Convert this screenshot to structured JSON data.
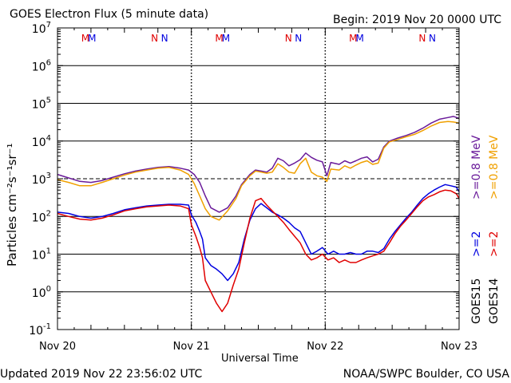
{
  "header": {
    "title": "GOES Electron Flux (5 minute data)",
    "begin": "Begin: 2019 Nov 20 0000 UTC"
  },
  "footer": {
    "updated": "Updated 2019 Nov 22 23:56:02 UTC",
    "credit": "NOAA/SWPC Boulder, CO USA"
  },
  "chart_data": {
    "type": "line",
    "title": "GOES Electron Flux (5 minute data)",
    "xlabel": "Universal Time",
    "ylabel": "Particles cm⁻²s⁻¹sr⁻¹",
    "yscale": "log",
    "ylim": [
      0.1,
      10000000
    ],
    "y_ticks": [
      {
        "value": 0.1,
        "base": "10",
        "exp": "-1"
      },
      {
        "value": 1,
        "base": "10",
        "exp": "0"
      },
      {
        "value": 10,
        "base": "10",
        "exp": "1"
      },
      {
        "value": 100,
        "base": "10",
        "exp": "2"
      },
      {
        "value": 1000,
        "base": "10",
        "exp": "3"
      },
      {
        "value": 10000,
        "base": "10",
        "exp": "4"
      },
      {
        "value": 100000,
        "base": "10",
        "exp": "5"
      },
      {
        "value": 1000000,
        "base": "10",
        "exp": "6"
      },
      {
        "value": 10000000,
        "base": "10",
        "exp": "7"
      }
    ],
    "x_unit": "hours since 2019 Nov 20 0000 UTC",
    "xlim": [
      0,
      72
    ],
    "x_ticks": [
      {
        "value": 0,
        "label": "Nov 20"
      },
      {
        "value": 24,
        "label": "Nov 21"
      },
      {
        "value": 48,
        "label": "Nov 22"
      },
      {
        "value": 72,
        "label": "Nov 23"
      }
    ],
    "grid": "horizontal lines at each decade; dashed line at 1000",
    "day_markers": [
      24,
      48
    ],
    "threshold_line": 1000,
    "annotations": [
      {
        "text": "M",
        "x": 5.0,
        "color": "#e00000"
      },
      {
        "text": "M",
        "x": 6.2,
        "color": "#0000e0"
      },
      {
        "text": "N",
        "x": 17.4,
        "color": "#e00000"
      },
      {
        "text": "N",
        "x": 19.2,
        "color": "#0000e0"
      },
      {
        "text": "M",
        "x": 29.0,
        "color": "#e00000"
      },
      {
        "text": "M",
        "x": 30.2,
        "color": "#0000e0"
      },
      {
        "text": "N",
        "x": 41.4,
        "color": "#e00000"
      },
      {
        "text": "N",
        "x": 43.2,
        "color": "#0000e0"
      },
      {
        "text": "M",
        "x": 53.0,
        "color": "#e00000"
      },
      {
        "text": "M",
        "x": 54.2,
        "color": "#0000e0"
      },
      {
        "text": "N",
        "x": 65.4,
        "color": "#e00000"
      },
      {
        "text": "N",
        "x": 67.2,
        "color": "#0000e0"
      }
    ],
    "legend": {
      "placement": "right-vertical",
      "groups": [
        {
          "satellite": "GOES15",
          "satellite_color": "#000000",
          "entries": [
            {
              "label": ">=2",
              "color": "#0000e0"
            },
            {
              "label": ">=0.8 MeV",
              "color": "#6a1b9a"
            }
          ]
        },
        {
          "satellite": "GOES14",
          "satellite_color": "#000000",
          "entries": [
            {
              "label": ">=2",
              "color": "#e00000"
            },
            {
              "label": ">=0.8 MeV",
              "color": "#f0a000"
            }
          ]
        }
      ]
    },
    "series": [
      {
        "name": "GOES15 >=0.8 MeV",
        "color": "#6a1b9a",
        "x": [
          0,
          2,
          4,
          6,
          8,
          10,
          12,
          14,
          16,
          18,
          20,
          22,
          23.5,
          24.5,
          25.5,
          26.5,
          27.5,
          29,
          30.5,
          32,
          33,
          34.5,
          35.5,
          36.5,
          37.5,
          38.5,
          39.5,
          40.5,
          41.5,
          42.5,
          43.5,
          44.5,
          45.5,
          46.5,
          47.5,
          48.3,
          49,
          50.5,
          51.5,
          52.5,
          53.5,
          54.5,
          55.5,
          56.5,
          57.5,
          58.5,
          59.5,
          61,
          62.5,
          64,
          65.5,
          67,
          68.5,
          70,
          71,
          72
        ],
        "y": [
          1300,
          1050,
          850,
          800,
          900,
          1100,
          1350,
          1600,
          1800,
          2000,
          2100,
          1900,
          1700,
          1300,
          800,
          350,
          170,
          130,
          170,
          350,
          700,
          1300,
          1700,
          1600,
          1500,
          1900,
          3500,
          3000,
          2200,
          2600,
          3200,
          4800,
          3700,
          3100,
          2800,
          1200,
          2700,
          2400,
          3000,
          2600,
          3000,
          3500,
          3800,
          2800,
          3300,
          7000,
          10000,
          12000,
          14000,
          17000,
          22000,
          30000,
          38000,
          42000,
          45000,
          40000
        ]
      },
      {
        "name": "GOES14 >=0.8 MeV",
        "color": "#f0a000",
        "x": [
          0,
          2,
          4,
          6,
          8,
          10,
          12,
          14,
          16,
          18,
          20,
          22,
          23.5,
          24.5,
          25.5,
          26.5,
          27.5,
          29,
          30.5,
          32,
          33,
          34.5,
          35.5,
          36.5,
          37.5,
          38.5,
          39.5,
          40.5,
          41.5,
          42.5,
          43.5,
          44.5,
          45.5,
          46.5,
          47.5,
          48.3,
          49,
          50.5,
          51.5,
          52.5,
          53.5,
          54.5,
          55.5,
          56.5,
          57.5,
          58.5,
          59.5,
          61,
          62.5,
          64,
          65.5,
          67,
          68.5,
          70,
          71,
          72
        ],
        "y": [
          950,
          800,
          650,
          650,
          800,
          1000,
          1250,
          1500,
          1700,
          1900,
          2000,
          1700,
          1300,
          750,
          350,
          160,
          100,
          80,
          140,
          300,
          650,
          1200,
          1600,
          1500,
          1400,
          1500,
          2500,
          2000,
          1500,
          1400,
          2500,
          3500,
          1500,
          1200,
          1100,
          850,
          1800,
          1700,
          2200,
          1900,
          2300,
          2700,
          3000,
          2400,
          2600,
          6500,
          9500,
          11000,
          13000,
          15000,
          19000,
          25000,
          31000,
          33000,
          32000,
          30000
        ]
      },
      {
        "name": "GOES15 >=2",
        "color": "#0000e0",
        "x": [
          0,
          2,
          4,
          6,
          8,
          10,
          12,
          14,
          16,
          18,
          20,
          22,
          23.5,
          24,
          24.8,
          25.5,
          26,
          26.5,
          27.5,
          28.5,
          29.5,
          30.5,
          31.5,
          32.5,
          33.5,
          34.5,
          35.5,
          36.5,
          37.5,
          38.5,
          39.5,
          40.5,
          41.5,
          42.5,
          43.5,
          44.5,
          45.5,
          46.5,
          47.5,
          48.5,
          49.5,
          50.5,
          51.5,
          52.5,
          53.5,
          54.5,
          55.5,
          56.5,
          57.5,
          58.5,
          59.5,
          60.5,
          61.5,
          62.5,
          63.5,
          64.5,
          65.5,
          66.5,
          67.5,
          68.5,
          69.5,
          70.5,
          71.5,
          72
        ],
        "y": [
          130,
          120,
          100,
          90,
          100,
          120,
          150,
          170,
          190,
          200,
          210,
          210,
          200,
          110,
          70,
          40,
          25,
          8,
          5,
          4,
          3,
          2,
          3,
          6,
          25,
          80,
          160,
          220,
          170,
          130,
          110,
          90,
          70,
          50,
          40,
          20,
          10,
          12,
          15,
          10,
          12,
          10,
          10,
          11,
          10,
          10,
          12,
          12,
          11,
          14,
          25,
          40,
          60,
          90,
          130,
          200,
          300,
          400,
          500,
          600,
          700,
          650,
          600,
          450
        ]
      },
      {
        "name": "GOES14 >=2",
        "color": "#e00000",
        "x": [
          0,
          2,
          4,
          6,
          8,
          10,
          12,
          14,
          16,
          18,
          20,
          22,
          23.5,
          24,
          24.8,
          25.5,
          26,
          26.5,
          27.5,
          28.5,
          29.5,
          30.5,
          31.5,
          32.5,
          33.5,
          34.5,
          35.5,
          36.5,
          37.5,
          38.5,
          39.5,
          40.5,
          41.5,
          42.5,
          43.5,
          44.5,
          45.5,
          46.5,
          47.5,
          48.5,
          49.5,
          50.5,
          51.5,
          52.5,
          53.5,
          54.5,
          55.5,
          56.5,
          57.5,
          58.5,
          59.5,
          60.5,
          61.5,
          62.5,
          63.5,
          64.5,
          65.5,
          66.5,
          67.5,
          68.5,
          69.5,
          70.5,
          71.5,
          72
        ],
        "y": [
          120,
          100,
          85,
          80,
          90,
          110,
          140,
          160,
          180,
          190,
          200,
          190,
          160,
          60,
          30,
          15,
          8,
          2,
          1,
          0.5,
          0.3,
          0.5,
          1.5,
          4,
          20,
          90,
          260,
          300,
          200,
          140,
          100,
          70,
          45,
          30,
          20,
          10,
          7,
          8,
          10,
          7,
          8,
          6,
          7,
          6,
          6,
          7,
          8,
          9,
          10,
          12,
          20,
          35,
          55,
          80,
          120,
          180,
          260,
          330,
          380,
          450,
          500,
          480,
          400,
          300
        ]
      }
    ]
  }
}
